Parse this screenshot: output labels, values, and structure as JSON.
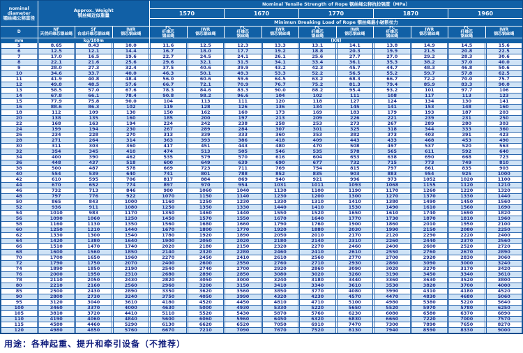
{
  "header": {
    "nominal_diameter": "nominal\ndiameter\n钢丝绳公称直径",
    "approx_weight": "Approx. Weight\n钢丝绳近似重量",
    "tensile_title": "Nominal Tensile Strength of Rope 钢丝绳公称抗拉强度（MPa）",
    "breaking_title": "Minimun Breaking Load of Rope 钢丝绳最小破断拉力",
    "strengths": [
      "1570",
      "1670",
      "1770",
      "1870",
      "1960"
    ],
    "d_label": "D",
    "nf_label": "NF\n天然纤维芯钢丝绳",
    "sf_label": "SF\n合成纤维芯钢丝绳",
    "iwr_weight_label": "IWR\n钢芯钢丝绳",
    "fc_label": "FC\n纤维芯\n钢丝绳",
    "iwr_label": "IWR\n钢芯钢丝绳",
    "unit_mm": "mm",
    "unit_kg": "kg/100m",
    "unit_kn": "(KN)"
  },
  "table": {
    "columns": [
      "D mm",
      "NF kg/100m",
      "SF kg/100m",
      "IWR kg/100m",
      "1570 FC",
      "1570 IWR",
      "1670 FC",
      "1670 IWR",
      "1770 FC",
      "1770 IWR",
      "1870 FC",
      "1870 IWR",
      "1960 FC",
      "1960 IWR"
    ],
    "rows": [
      [
        "5",
        "8.65",
        "8.43",
        "10.0",
        "11.6",
        "12.5",
        "12.3",
        "13.3",
        "13.1",
        "14.1",
        "13.8",
        "14.9",
        "14.5",
        "15.6"
      ],
      [
        "6",
        "12.5",
        "12.1",
        "14.4",
        "16.7",
        "18.0",
        "17.7",
        "19.2",
        "18.8",
        "20.3",
        "19.9",
        "21.5",
        "20.8",
        "22.5"
      ],
      [
        "7",
        "17.0",
        "16.5",
        "19.6",
        "22.7",
        "24.5",
        "24.1",
        "26.1",
        "25.6",
        "27.7",
        "27.0",
        "29.2",
        "28.3",
        "30.6"
      ],
      [
        "8",
        "22.1",
        "21.6",
        "25.6",
        "29.6",
        "32.1",
        "31.5",
        "34.1",
        "33.4",
        "36.1",
        "35.3",
        "38.2",
        "37.0",
        "40.0"
      ],
      [
        "9",
        "28.0",
        "27.3",
        "32.4",
        "37.5",
        "40.6",
        "39.9",
        "43.2",
        "42.3",
        "45.7",
        "44.7",
        "48.3",
        "46.8",
        "50.6"
      ],
      [
        "10",
        "34.6",
        "33.7",
        "40.0",
        "46.3",
        "50.1",
        "49.3",
        "53.3",
        "52.2",
        "56.5",
        "55.2",
        "59.7",
        "57.8",
        "62.5"
      ],
      [
        "11",
        "41.9",
        "40.8",
        "48.4",
        "56.0",
        "60.6",
        "59.6",
        "64.5",
        "63.2",
        "68.3",
        "66.7",
        "72.2",
        "70.0",
        "75.7"
      ],
      [
        "12",
        "49.8",
        "48.5",
        "57.6",
        "66.7",
        "72.1",
        "70.9",
        "76.7",
        "75.2",
        "81.3",
        "79.4",
        "85.9",
        "83.3",
        "90.0"
      ],
      [
        "13",
        "58.5",
        "57.0",
        "67.6",
        "78.3",
        "84.6",
        "83.3",
        "90.0",
        "88.2",
        "95.4",
        "93.2",
        "101",
        "97.7",
        "106"
      ],
      [
        "14",
        "67.8",
        "66.1",
        "78.4",
        "90.8",
        "98.2",
        "96.6",
        "104",
        "102",
        "111",
        "108",
        "117",
        "113",
        "123"
      ],
      [
        "15",
        "77.9",
        "75.8",
        "90.0",
        "104",
        "113",
        "111",
        "120",
        "118",
        "127",
        "124",
        "134",
        "130",
        "141"
      ],
      [
        "16",
        "88.6",
        "86.3",
        "102",
        "119",
        "128",
        "126",
        "136",
        "134",
        "145",
        "141",
        "153",
        "148",
        "160"
      ],
      [
        "18",
        "112",
        "109",
        "130",
        "150",
        "162",
        "160",
        "173",
        "169",
        "183",
        "179",
        "193",
        "187",
        "203"
      ],
      [
        "20",
        "138",
        "135",
        "160",
        "185",
        "200",
        "197",
        "213",
        "209",
        "226",
        "221",
        "239",
        "231",
        "250"
      ],
      [
        "22",
        "168",
        "163",
        "194",
        "224",
        "242",
        "238",
        "258",
        "253",
        "273",
        "267",
        "289",
        "280",
        "303"
      ],
      [
        "24",
        "199",
        "194",
        "230",
        "267",
        "289",
        "284",
        "307",
        "301",
        "325",
        "318",
        "344",
        "333",
        "360"
      ],
      [
        "26",
        "234",
        "228",
        "270",
        "313",
        "339",
        "333",
        "360",
        "353",
        "382",
        "373",
        "403",
        "391",
        "423"
      ],
      [
        "28",
        "271",
        "264",
        "314",
        "363",
        "393",
        "386",
        "418",
        "409",
        "443",
        "433",
        "468",
        "453",
        "490"
      ],
      [
        "30",
        "311",
        "303",
        "360",
        "417",
        "451",
        "443",
        "480",
        "470",
        "508",
        "497",
        "537",
        "520",
        "563"
      ],
      [
        "32",
        "354",
        "345",
        "410",
        "474",
        "513",
        "505",
        "546",
        "535",
        "578",
        "565",
        "611",
        "592",
        "640"
      ],
      [
        "34",
        "400",
        "390",
        "462",
        "535",
        "579",
        "570",
        "616",
        "604",
        "653",
        "638",
        "690",
        "668",
        "723"
      ],
      [
        "36",
        "448",
        "437",
        "518",
        "600",
        "649",
        "639",
        "690",
        "677",
        "732",
        "715",
        "773",
        "749",
        "810"
      ],
      [
        "38",
        "500",
        "487",
        "578",
        "669",
        "723",
        "711",
        "769",
        "754",
        "815",
        "797",
        "861",
        "835",
        "903"
      ],
      [
        "40",
        "554",
        "539",
        "640",
        "741",
        "801",
        "788",
        "852",
        "835",
        "903",
        "883",
        "954",
        "925",
        "1000"
      ],
      [
        "42",
        "610",
        "595",
        "706",
        "817",
        "884",
        "869",
        "940",
        "921",
        "996",
        "973",
        "1052",
        "1020",
        "1100"
      ],
      [
        "44",
        "670",
        "652",
        "774",
        "897",
        "970",
        "954",
        "1031",
        "1011",
        "1093",
        "1068",
        "1155",
        "1120",
        "1210"
      ],
      [
        "46",
        "732",
        "713",
        "846",
        "980",
        "1060",
        "1040",
        "1130",
        "1100",
        "1190",
        "1170",
        "1260",
        "1220",
        "1320"
      ],
      [
        "48",
        "797",
        "776",
        "922",
        "1070",
        "1150",
        "1140",
        "1230",
        "1200",
        "1300",
        "1270",
        "1370",
        "1330",
        "1440"
      ],
      [
        "50",
        "865",
        "843",
        "1000",
        "1160",
        "1250",
        "1230",
        "1330",
        "1310",
        "1410",
        "1380",
        "1490",
        "1450",
        "1560"
      ],
      [
        "52",
        "936",
        "911",
        "1080",
        "1250",
        "1350",
        "1330",
        "1440",
        "1410",
        "1530",
        "1490",
        "1610",
        "1560",
        "1690"
      ],
      [
        "54",
        "1010",
        "983",
        "1170",
        "1350",
        "1460",
        "1440",
        "1550",
        "1520",
        "1650",
        "1610",
        "1740",
        "1690",
        "1820"
      ],
      [
        "56",
        "1090",
        "1060",
        "1250",
        "1450",
        "1570",
        "1550",
        "1670",
        "1640",
        "1770",
        "1730",
        "1870",
        "1810",
        "1960"
      ],
      [
        "58",
        "1160",
        "1130",
        "1350",
        "1560",
        "1680",
        "1660",
        "1790",
        "1760",
        "1900",
        "1860",
        "2010",
        "1950",
        "2100"
      ],
      [
        "60",
        "1250",
        "1210",
        "1440",
        "1670",
        "1800",
        "1770",
        "1920",
        "1880",
        "2030",
        "1990",
        "2150",
        "2080",
        "2250"
      ],
      [
        "62",
        "1330",
        "1300",
        "1540",
        "1780",
        "1920",
        "1890",
        "2050",
        "2010",
        "2170",
        "2120",
        "2290",
        "2220",
        "2400"
      ],
      [
        "64",
        "1420",
        "1380",
        "1640",
        "1900",
        "2050",
        "2020",
        "2180",
        "2140",
        "2310",
        "2260",
        "2440",
        "2370",
        "2560"
      ],
      [
        "66",
        "1510",
        "1470",
        "1740",
        "2020",
        "2180",
        "2150",
        "2320",
        "2270",
        "2460",
        "2400",
        "2600",
        "2520",
        "2720"
      ],
      [
        "68",
        "1600",
        "1560",
        "1850",
        "2140",
        "2320",
        "2280",
        "2460",
        "2410",
        "2610",
        "2550",
        "2760",
        "2670",
        "2890"
      ],
      [
        "70",
        "1700",
        "1650",
        "1960",
        "2270",
        "2450",
        "2410",
        "2610",
        "2560",
        "2770",
        "2700",
        "2920",
        "2830",
        "3060"
      ],
      [
        "72",
        "1790",
        "1750",
        "2070",
        "2400",
        "2600",
        "2550",
        "2760",
        "2710",
        "2930",
        "2860",
        "3090",
        "3000",
        "3240"
      ],
      [
        "74",
        "1890",
        "1850",
        "2190",
        "2540",
        "2740",
        "2700",
        "2920",
        "2860",
        "3090",
        "3020",
        "3270",
        "3170",
        "3420"
      ],
      [
        "76",
        "2000",
        "1950",
        "2310",
        "2680",
        "2890",
        "2850",
        "3080",
        "3020",
        "3260",
        "3190",
        "3450",
        "3340",
        "3610"
      ],
      [
        "78",
        "2110",
        "2050",
        "2430",
        "2820",
        "3050",
        "3000",
        "3240",
        "3180",
        "3440",
        "3360",
        "3630",
        "3520",
        "3800"
      ],
      [
        "80",
        "2210",
        "2160",
        "2560",
        "2960",
        "3200",
        "3150",
        "3410",
        "3340",
        "3610",
        "3530",
        "3820",
        "3700",
        "4000"
      ],
      [
        "85",
        "2500",
        "2430",
        "2890",
        "3350",
        "3620",
        "3560",
        "3850",
        "3770",
        "4080",
        "3990",
        "4310",
        "4180",
        "4520"
      ],
      [
        "90",
        "2800",
        "2730",
        "3240",
        "3750",
        "4050",
        "3990",
        "4320",
        "4230",
        "4570",
        "4470",
        "4830",
        "4680",
        "5060"
      ],
      [
        "95",
        "3120",
        "3040",
        "3610",
        "4180",
        "4520",
        "4450",
        "4810",
        "4710",
        "5100",
        "4980",
        "5380",
        "5220",
        "5640"
      ],
      [
        "100",
        "3460",
        "3370",
        "4000",
        "4630",
        "5000",
        "4930",
        "5330",
        "5220",
        "5650",
        "5520",
        "5970",
        "5780",
        "6250"
      ],
      [
        "105",
        "3810",
        "3720",
        "4410",
        "5110",
        "5520",
        "5430",
        "5870",
        "5760",
        "6230",
        "6080",
        "6580",
        "6370",
        "6890"
      ],
      [
        "110",
        "4190",
        "4060",
        "4840",
        "5600",
        "6060",
        "5960",
        "6450",
        "6320",
        "6830",
        "6660",
        "7220",
        "7000",
        "7570"
      ],
      [
        "115",
        "4580",
        "4460",
        "5290",
        "6130",
        "6620",
        "6520",
        "7050",
        "6910",
        "7470",
        "7300",
        "7890",
        "7650",
        "8270"
      ],
      [
        "120",
        "4980",
        "4850",
        "5760",
        "6670",
        "7210",
        "7090",
        "7670",
        "7520",
        "8130",
        "7940",
        "8590",
        "8330",
        "9000"
      ]
    ]
  },
  "footer": {
    "usage": "用途：各种起重、提升和牵引设备（不推荐）"
  },
  "colors": {
    "header_bg": "#1160a6",
    "row_alt_bg": "#cfe3f6",
    "grid_line": "#2a66ad",
    "text_navy": "#1d2f8e"
  }
}
